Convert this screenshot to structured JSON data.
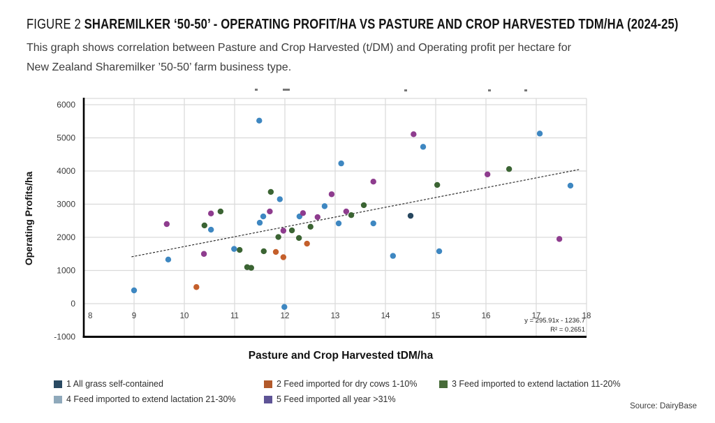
{
  "header": {
    "figure_label": "FIGURE 2",
    "title": "SHAREMILKER ‘50-50’ - OPERATING PROFIT/HA VS PASTURE AND CROP HARVESTED TDM/HA (2024-25)",
    "subtitle_line1": "This graph shows correlation between Pasture and Crop Harvested (t/DM) and Operating profit per hectare for",
    "subtitle_line2": "New Zealand Sharemilker ’50-50’ farm business type."
  },
  "source": "Source: DairyBase",
  "colors": {
    "grid": "#d9d9d9",
    "axis": "#000000",
    "tick_label": "#3a3a3a",
    "axis_title": "#111111",
    "equation_text": "#222222"
  },
  "chart_data": {
    "type": "scatter",
    "xlabel": "Pasture and Crop Harvested tDM/ha",
    "ylabel": "Operating Profits/ha",
    "xlim": [
      8,
      18
    ],
    "ylim": [
      -1000,
      6190
    ],
    "x_ticks": [
      8,
      9,
      10,
      11,
      12,
      13,
      14,
      15,
      16,
      17,
      18
    ],
    "y_ticks": [
      -1000,
      0,
      1000,
      2000,
      3000,
      4000,
      5000,
      6000
    ],
    "grid": true,
    "legend_position": "bottom-left",
    "trendline": {
      "equation_label": "y = 295.91x - 1236.7",
      "r2_label": "R² = 0.2651",
      "slope": 295.91,
      "intercept": -1236.7,
      "x_start": 8.95,
      "x_end": 17.85,
      "style": "dashed",
      "color": "#1a1a1a"
    },
    "series": [
      {
        "name": "1 All grass self-contained",
        "marker_color": "#27475f",
        "swatch_color": "#2a4a63",
        "points": [
          [
            14.5,
            2650
          ]
        ]
      },
      {
        "name": "2 Feed imported for dry cows 1-10%",
        "marker_color": "#c45f2b",
        "swatch_color": "#b2592a",
        "points": [
          [
            10.24,
            500
          ],
          [
            11.82,
            1560
          ],
          [
            11.97,
            1400
          ],
          [
            12.44,
            1810
          ]
        ]
      },
      {
        "name": "3 Feed imported to extend lactation 11-20%",
        "marker_color": "#3b6433",
        "swatch_color": "#476b38",
        "points": [
          [
            10.4,
            2360
          ],
          [
            10.72,
            2780
          ],
          [
            11.1,
            1620
          ],
          [
            11.25,
            1100
          ],
          [
            11.33,
            1080
          ],
          [
            11.58,
            1580
          ],
          [
            11.72,
            3370
          ],
          [
            11.87,
            2010
          ],
          [
            12.14,
            2210
          ],
          [
            12.28,
            1980
          ],
          [
            12.51,
            2320
          ],
          [
            13.32,
            2670
          ],
          [
            13.57,
            2970
          ],
          [
            15.03,
            3580
          ],
          [
            16.46,
            4060
          ]
        ]
      },
      {
        "name": "4 Feed imported to extend lactation 21-30%",
        "marker_color": "#3e87c1",
        "swatch_color": "#8fa9bb",
        "points": [
          [
            9.0,
            400
          ],
          [
            9.68,
            1330
          ],
          [
            10.53,
            2230
          ],
          [
            10.99,
            1650
          ],
          [
            11.49,
            5520
          ],
          [
            11.5,
            2440
          ],
          [
            11.57,
            2630
          ],
          [
            11.9,
            3150
          ],
          [
            11.99,
            -100
          ],
          [
            12.29,
            2630
          ],
          [
            12.79,
            2940
          ],
          [
            13.07,
            2420
          ],
          [
            13.12,
            4230
          ],
          [
            13.76,
            2420
          ],
          [
            14.15,
            1440
          ],
          [
            14.75,
            4730
          ],
          [
            15.07,
            1580
          ],
          [
            17.07,
            5130
          ],
          [
            17.68,
            3560
          ]
        ]
      },
      {
        "name": "5 Feed imported all year >31%",
        "marker_color": "#8e3c8e",
        "swatch_color": "#5e5496",
        "points": [
          [
            9.65,
            2400
          ],
          [
            10.39,
            1500
          ],
          [
            10.53,
            2720
          ],
          [
            11.7,
            2780
          ],
          [
            11.97,
            2200
          ],
          [
            12.36,
            2730
          ],
          [
            12.65,
            2610
          ],
          [
            12.93,
            3300
          ],
          [
            13.22,
            2780
          ],
          [
            13.76,
            3680
          ],
          [
            14.56,
            5110
          ],
          [
            16.03,
            3900
          ],
          [
            17.46,
            1950
          ]
        ]
      }
    ]
  }
}
